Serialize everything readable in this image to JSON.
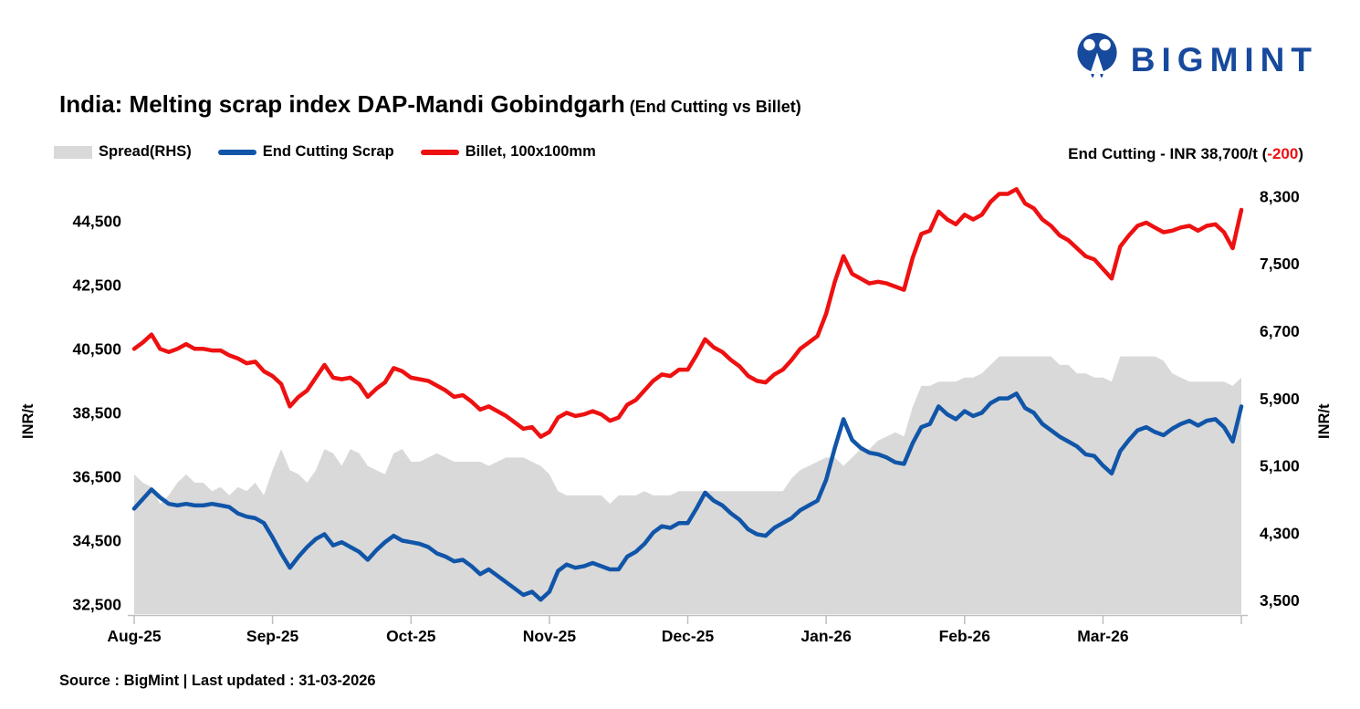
{
  "logo": {
    "text": "BIGMINT",
    "color": "#17499c"
  },
  "title": {
    "main": "India: Melting scrap index DAP-Mandi Gobindgarh",
    "suffix": " (End Cutting vs Billet)"
  },
  "legend": [
    {
      "label": "Spread(RHS)",
      "type": "area",
      "color": "#d9d9d9"
    },
    {
      "label": "End Cutting Scrap",
      "type": "line",
      "color": "#1155a8"
    },
    {
      "label": "Billet, 100x100mm",
      "type": "line",
      "color": "#ee1111"
    }
  ],
  "annotation": {
    "prefix": "End Cutting - INR 38,700/t (",
    "change": "-200",
    "suffix": ")",
    "change_color": "#ee1111"
  },
  "footer": "Source : BigMint | Last updated : 31-03-2026",
  "chart_data": {
    "type": "line+area",
    "title": "India: Melting scrap index DAP-Mandi Gobindgarh (End Cutting vs Billet)",
    "period": "01-08-2025 to 31-03-2026, daily prices sampled as 129 evenly spaced points",
    "x_labels": [
      "Aug-25",
      "Sep-25",
      "Oct-25",
      "Nov-25",
      "Dec-25",
      "Jan-26",
      "Feb-26",
      "Mar-26"
    ],
    "x_tick_indices": [
      0,
      16,
      32,
      48,
      64,
      80,
      96,
      112,
      128
    ],
    "grid": false,
    "legend_position": "top-left",
    "left_axis": {
      "title": "INR/t",
      "ticks": [
        32500,
        34500,
        36500,
        38500,
        40500,
        42500,
        44500
      ],
      "min": 32200,
      "max": 45850
    },
    "right_axis": {
      "title": "INR/t",
      "ticks": [
        3500,
        4300,
        5100,
        5900,
        6700,
        7500,
        8300
      ],
      "min": 3340,
      "max": 8520
    },
    "latest": {
      "end_cutting": 38700,
      "change": -200
    },
    "series": [
      {
        "name": "End Cutting Scrap",
        "axis": "left",
        "color": "#1155a8",
        "values": [
          35500,
          35800,
          36100,
          35850,
          35650,
          35600,
          35650,
          35600,
          35600,
          35650,
          35600,
          35550,
          35350,
          35250,
          35200,
          35050,
          34600,
          34100,
          33650,
          34000,
          34300,
          34550,
          34700,
          34350,
          34450,
          34300,
          34150,
          33900,
          34200,
          34450,
          34650,
          34500,
          34450,
          34400,
          34300,
          34100,
          34000,
          33850,
          33900,
          33700,
          33450,
          33600,
          33400,
          33200,
          33000,
          32800,
          32900,
          32650,
          32900,
          33550,
          33750,
          33650,
          33700,
          33800,
          33700,
          33600,
          33600,
          34000,
          34150,
          34400,
          34750,
          34950,
          34900,
          35050,
          35050,
          35500,
          36000,
          35750,
          35600,
          35350,
          35150,
          34850,
          34700,
          34650,
          34900,
          35050,
          35200,
          35450,
          35600,
          35750,
          36400,
          37400,
          38300,
          37650,
          37400,
          37250,
          37200,
          37100,
          36950,
          36900,
          37550,
          38050,
          38150,
          38700,
          38450,
          38300,
          38550,
          38400,
          38500,
          38800,
          38950,
          38950,
          39100,
          38650,
          38500,
          38150,
          37950,
          37750,
          37600,
          37450,
          37200,
          37150,
          36850,
          36600,
          37300,
          37650,
          37950,
          38050,
          37900,
          37800,
          38000,
          38150,
          38250,
          38100,
          38250,
          38300,
          38050,
          37600,
          38700
        ]
      },
      {
        "name": "Billet, 100x100mm",
        "axis": "left",
        "color": "#ee1111",
        "values": [
          40500,
          40700,
          40950,
          40500,
          40400,
          40500,
          40650,
          40500,
          40500,
          40450,
          40450,
          40300,
          40200,
          40050,
          40100,
          39800,
          39650,
          39400,
          38700,
          39000,
          39200,
          39600,
          40000,
          39600,
          39550,
          39600,
          39400,
          39000,
          39250,
          39450,
          39900,
          39800,
          39600,
          39550,
          39500,
          39350,
          39200,
          39000,
          39050,
          38850,
          38600,
          38700,
          38550,
          38400,
          38200,
          38000,
          38050,
          37750,
          37900,
          38350,
          38500,
          38400,
          38450,
          38550,
          38450,
          38250,
          38350,
          38750,
          38900,
          39200,
          39500,
          39700,
          39650,
          39850,
          39850,
          40300,
          40800,
          40550,
          40400,
          40150,
          39950,
          39650,
          39500,
          39450,
          39700,
          39850,
          40150,
          40500,
          40700,
          40900,
          41600,
          42600,
          43400,
          42850,
          42700,
          42550,
          42600,
          42550,
          42450,
          42350,
          43350,
          44100,
          44200,
          44800,
          44550,
          44400,
          44700,
          44550,
          44700,
          45100,
          45350,
          45350,
          45500,
          45050,
          44900,
          44550,
          44350,
          44050,
          43900,
          43650,
          43400,
          43300,
          43000,
          42700,
          43700,
          44050,
          44350,
          44450,
          44300,
          44150,
          44200,
          44300,
          44350,
          44200,
          44350,
          44400,
          44150,
          43650,
          44850
        ]
      },
      {
        "name": "Spread(RHS)",
        "axis": "right",
        "color": "#d9d9d9",
        "derived_from": "Billet minus End Cutting Scrap, plotted as gray area on right axis"
      }
    ]
  }
}
